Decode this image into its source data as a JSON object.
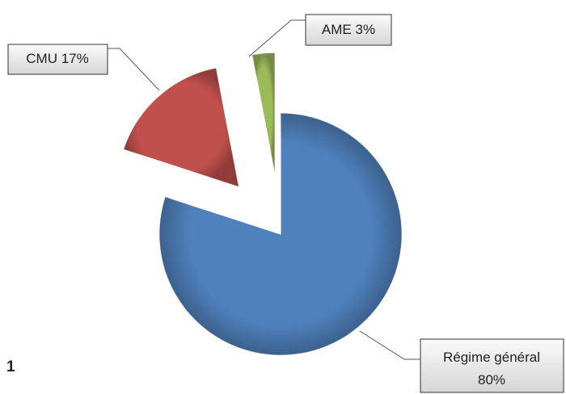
{
  "chart_data": {
    "type": "pie",
    "categories": [
      "Régime général",
      "CMU",
      "AME"
    ],
    "values": [
      80,
      17,
      3
    ],
    "value_labels": [
      "80%",
      "17%",
      "3%"
    ],
    "colors": [
      "#4f81bd",
      "#c0504d",
      "#9bbb59"
    ],
    "footnote": "1"
  }
}
